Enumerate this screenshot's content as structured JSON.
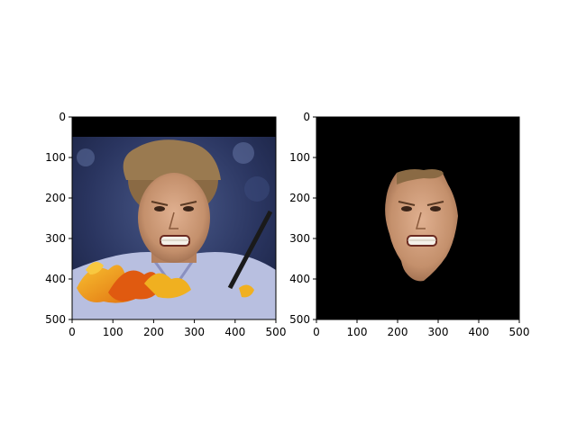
{
  "chart_data": [
    {
      "type": "image",
      "title": "",
      "xlabel": "",
      "ylabel": "",
      "xlim": [
        0,
        500
      ],
      "ylim": [
        500,
        0
      ],
      "x_ticks": [
        "0",
        "100",
        "200",
        "300",
        "400",
        "500"
      ],
      "y_ticks": [
        "0",
        "100",
        "200",
        "300",
        "400",
        "500"
      ],
      "content": "photo",
      "grid": false
    },
    {
      "type": "image",
      "title": "",
      "xlabel": "",
      "ylabel": "",
      "xlim": [
        0,
        500
      ],
      "ylim": [
        500,
        0
      ],
      "x_ticks": [
        "0",
        "100",
        "200",
        "300",
        "400",
        "500"
      ],
      "y_ticks": [
        "0",
        "100",
        "200",
        "300",
        "400",
        "500"
      ],
      "content": "masked-photo",
      "grid": false
    }
  ],
  "colors": {
    "background": "#ffffff",
    "mask": "#000000",
    "axis": "#000000",
    "skin": "#c99a7a",
    "hair": "#8a6a44",
    "shirt": "#b8bfe0",
    "leaves": "#f0a020",
    "crowd": "#2a3a6a"
  }
}
